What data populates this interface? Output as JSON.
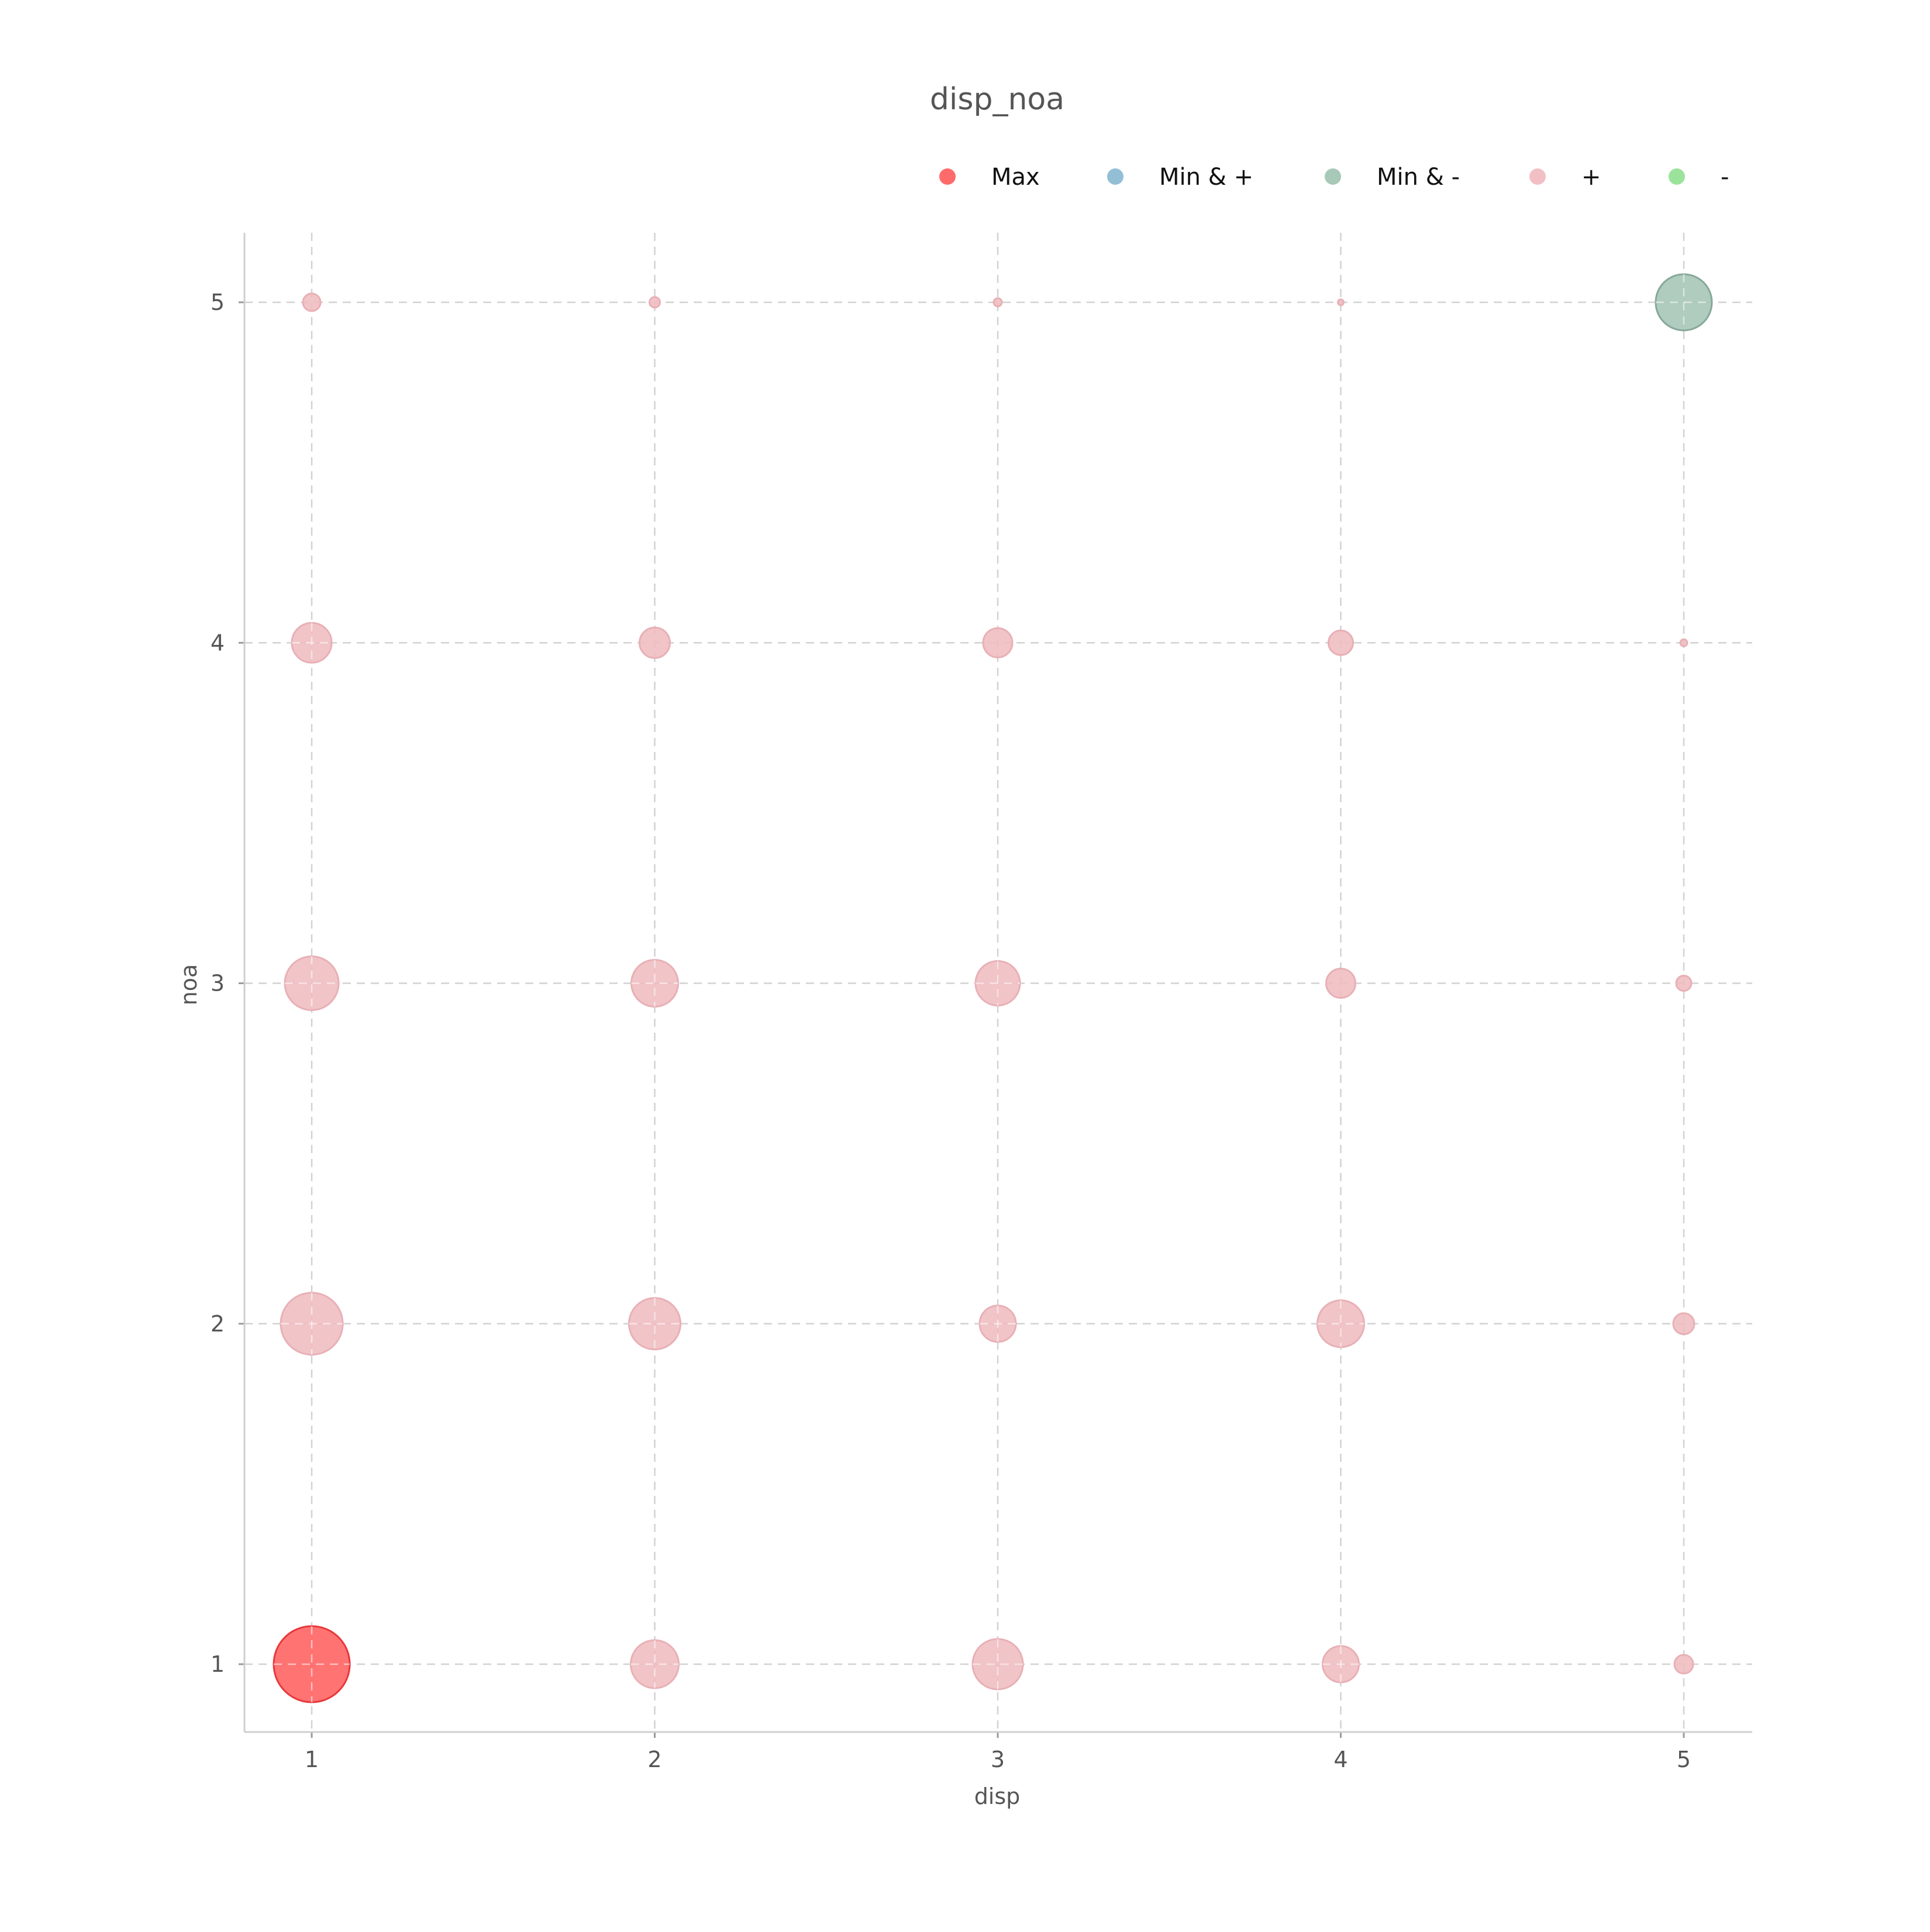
{
  "chart_data": {
    "type": "scatter",
    "title": "disp_noa",
    "xlabel": "disp",
    "ylabel": "noa",
    "xticks": [
      "1",
      "2",
      "3",
      "4",
      "5"
    ],
    "yticks": [
      "1",
      "2",
      "3",
      "4",
      "5"
    ],
    "xlim": [
      0.8,
      5.2
    ],
    "ylim": [
      0.8,
      5.2
    ],
    "grid": true,
    "legend_position": "top-right",
    "legend": [
      {
        "label": "Max",
        "color": "#ff6b6b"
      },
      {
        "label": "Min & +",
        "color": "#93bfd6"
      },
      {
        "label": "Min & -",
        "color": "#a8c8b8"
      },
      {
        "label": "+",
        "color": "#f2c0c4"
      },
      {
        "label": "-",
        "color": "#9be39b"
      }
    ],
    "colors": {
      "Max": "#ff6b6b",
      "Max_edge": "#e8383b",
      "Min & +": "#93bfd6",
      "Min & -": "#a8c8b8",
      "Min & -_edge": "#86a898",
      "+": "#efbcc0",
      "+_edge": "#e8b0b5",
      "-": "#9be39b"
    },
    "points": [
      {
        "x": 1,
        "y": 5,
        "size": 15,
        "category": "+"
      },
      {
        "x": 2,
        "y": 5,
        "size": 9,
        "category": "+"
      },
      {
        "x": 3,
        "y": 5,
        "size": 7,
        "category": "+"
      },
      {
        "x": 4,
        "y": 5,
        "size": 5,
        "category": "+"
      },
      {
        "x": 5,
        "y": 5,
        "size": 48,
        "category": "Min & -"
      },
      {
        "x": 1,
        "y": 4,
        "size": 34,
        "category": "+"
      },
      {
        "x": 2,
        "y": 4,
        "size": 26,
        "category": "+"
      },
      {
        "x": 3,
        "y": 4,
        "size": 25,
        "category": "+"
      },
      {
        "x": 4,
        "y": 4,
        "size": 21,
        "category": "+"
      },
      {
        "x": 5,
        "y": 4,
        "size": 6,
        "category": "+"
      },
      {
        "x": 1,
        "y": 3,
        "size": 46,
        "category": "+"
      },
      {
        "x": 2,
        "y": 3,
        "size": 40,
        "category": "+"
      },
      {
        "x": 3,
        "y": 3,
        "size": 38,
        "category": "+"
      },
      {
        "x": 4,
        "y": 3,
        "size": 25,
        "category": "+"
      },
      {
        "x": 5,
        "y": 3,
        "size": 13,
        "category": "+"
      },
      {
        "x": 1,
        "y": 2,
        "size": 53,
        "category": "+"
      },
      {
        "x": 2,
        "y": 2,
        "size": 44,
        "category": "+"
      },
      {
        "x": 3,
        "y": 2,
        "size": 31,
        "category": "+"
      },
      {
        "x": 4,
        "y": 2,
        "size": 40,
        "category": "+"
      },
      {
        "x": 5,
        "y": 2,
        "size": 18,
        "category": "+"
      },
      {
        "x": 1,
        "y": 1,
        "size": 65,
        "category": "Max"
      },
      {
        "x": 2,
        "y": 1,
        "size": 41,
        "category": "+"
      },
      {
        "x": 3,
        "y": 1,
        "size": 43,
        "category": "+"
      },
      {
        "x": 4,
        "y": 1,
        "size": 31,
        "category": "+"
      },
      {
        "x": 5,
        "y": 1,
        "size": 16,
        "category": "+"
      }
    ]
  }
}
